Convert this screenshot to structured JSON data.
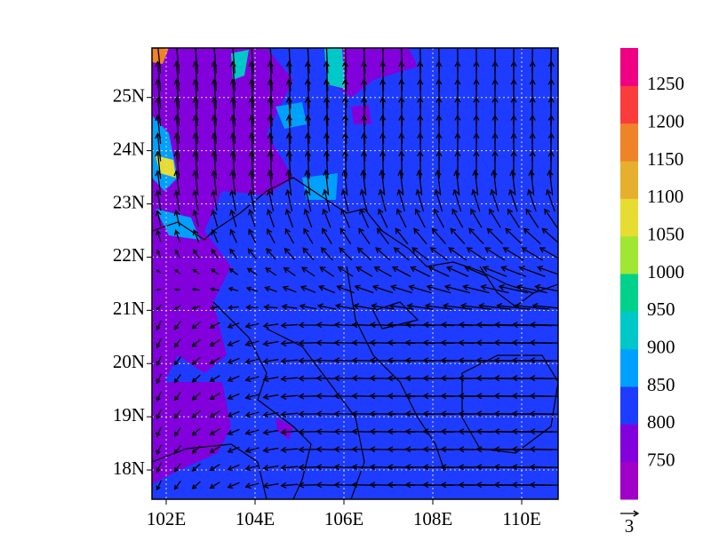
{
  "map": {
    "xlim": [
      101.68,
      110.82
    ],
    "ylim": [
      17.45,
      25.93
    ],
    "xticks": [
      {
        "value": 102,
        "label": "102E"
      },
      {
        "value": 104,
        "label": "104E"
      },
      {
        "value": 106,
        "label": "106E"
      },
      {
        "value": 108,
        "label": "108E"
      },
      {
        "value": 110,
        "label": "110E"
      }
    ],
    "yticks": [
      {
        "value": 18,
        "label": "18N"
      },
      {
        "value": 19,
        "label": "19N"
      },
      {
        "value": 20,
        "label": "20N"
      },
      {
        "value": 21,
        "label": "21N"
      },
      {
        "value": 22,
        "label": "22N"
      },
      {
        "value": 23,
        "label": "23N"
      },
      {
        "value": 24,
        "label": "24N"
      },
      {
        "value": 25,
        "label": "25N"
      }
    ],
    "grid": true,
    "colorbar": {
      "levels": [
        750,
        800,
        850,
        900,
        950,
        1000,
        1050,
        1100,
        1150,
        1200,
        1250
      ],
      "colors": [
        "#a000c8",
        "#8200dc",
        "#1e3cff",
        "#00a0ff",
        "#00c8c8",
        "#00d28c",
        "#a0e632",
        "#e6dc32",
        "#e6af2d",
        "#f08228",
        "#fa3c3c",
        "#f00082"
      ]
    },
    "reference_vector": 3
  }
}
